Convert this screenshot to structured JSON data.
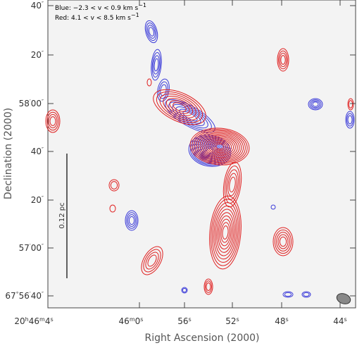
{
  "figure": {
    "legend": {
      "blue": [
        "Blue: −2.3 < v < 0.9 km s",
        "−1"
      ],
      "red": [
        "Red: 4.1 < v < 8.5 km s",
        "−1"
      ]
    },
    "x_axis": {
      "label": "Right Ascension (2000)",
      "ticks": [
        [
          "20",
          "h",
          "46",
          "m",
          "4",
          "s"
        ],
        [
          "46",
          "m",
          "0",
          "s"
        ],
        [
          "56",
          "s"
        ],
        [
          "52",
          "s"
        ],
        [
          "48",
          "s"
        ],
        [
          "44",
          "s"
        ]
      ]
    },
    "y_axis": {
      "label": "Declination (2000)",
      "ticks": [
        [
          "40",
          "″"
        ],
        [
          "20",
          "″"
        ],
        [
          "58",
          "′",
          "00",
          "″"
        ],
        [
          "40",
          "″"
        ],
        [
          "20",
          "″"
        ],
        [
          "57",
          "′",
          "00",
          "″"
        ],
        [
          "67",
          "°",
          "56",
          "′",
          "40",
          "″"
        ]
      ]
    },
    "scale_bar": {
      "label": "0.12 pc"
    }
  }
}
